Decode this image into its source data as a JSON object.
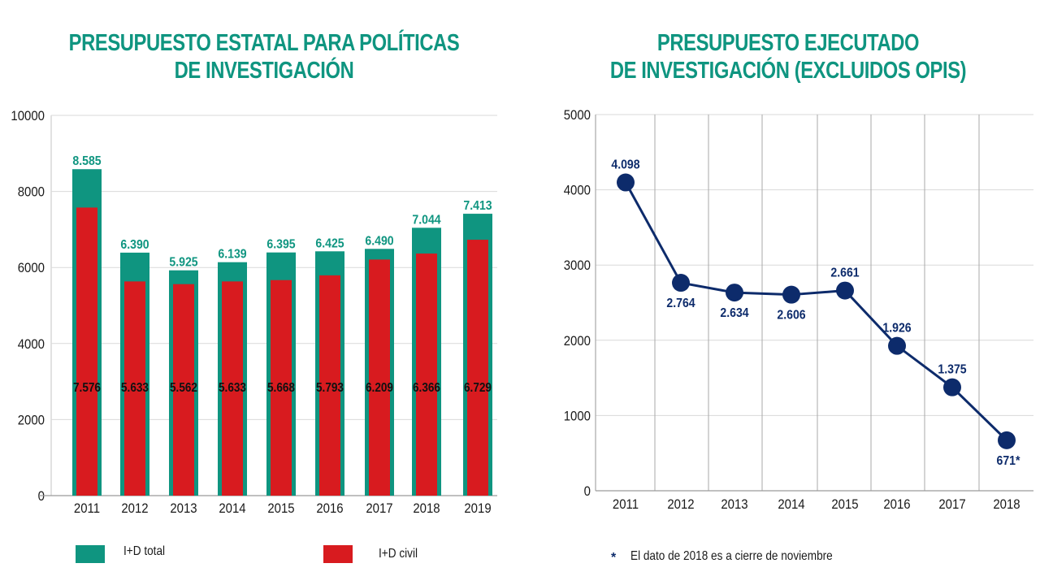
{
  "colors": {
    "total": "#0f9580",
    "civil": "#d81b1f",
    "line": "#0d2b6b",
    "grid": "#d9d9d9",
    "axis": "#9a9a9a"
  },
  "chart_data": [
    {
      "type": "bar",
      "title": "PRESUPUESTO ESTATAL PARA POLÍTICAS DE INVESTIGACIÓN",
      "title_lines": [
        "PRESUPUESTO ESTATAL PARA POLÍTICAS",
        "DE INVESTIGACIÓN"
      ],
      "xlabel": "",
      "ylabel": "",
      "ylim": [
        0,
        10000
      ],
      "yticks": [
        0,
        2000,
        4000,
        6000,
        8000,
        10000
      ],
      "ytick_labels": [
        "0",
        "2000",
        "4000",
        "6000",
        "8000",
        "10000"
      ],
      "grid": true,
      "legend_position": "bottom",
      "categories": [
        "2011",
        "2012",
        "2013",
        "2014",
        "2015",
        "2016",
        "2017",
        "2018",
        "2019"
      ],
      "series": [
        {
          "name": "I+D total",
          "values": [
            8585,
            6390,
            5925,
            6139,
            6395,
            6425,
            6490,
            7044,
            7413
          ],
          "labels": [
            "8.585",
            "6.390",
            "5.925",
            "6.139",
            "6.395",
            "6.425",
            "6.490",
            "7.044",
            "7.413"
          ]
        },
        {
          "name": "I+D civil",
          "values": [
            7576,
            5633,
            5562,
            5633,
            5668,
            5793,
            6209,
            6366,
            6729
          ],
          "labels": [
            "7.576",
            "5.633",
            "5.562",
            "5.633",
            "5.668",
            "5.793",
            "6.209",
            "6.366",
            "6.729"
          ]
        }
      ]
    },
    {
      "type": "line",
      "title": "PRESUPUESTO EJECUTADO DE INVESTIGACIÓN (EXCLUIDOS OPIS)",
      "title_lines": [
        "PRESUPUESTO EJECUTADO",
        "DE INVESTIGACIÓN (EXCLUIDOS OPIS)"
      ],
      "xlabel": "",
      "ylabel": "",
      "ylim": [
        0,
        5000
      ],
      "yticks": [
        0,
        1000,
        2000,
        3000,
        4000,
        5000
      ],
      "ytick_labels": [
        "0",
        "1000",
        "2000",
        "3000",
        "4000",
        "5000"
      ],
      "grid": true,
      "categories": [
        "2011",
        "2012",
        "2013",
        "2014",
        "2015",
        "2016",
        "2017",
        "2018"
      ],
      "series": [
        {
          "name": "Presupuesto ejecutado",
          "values": [
            4098,
            2764,
            2634,
            2606,
            2661,
            1926,
            1375,
            671
          ],
          "labels": [
            "4.098",
            "2.764",
            "2.634",
            "2.606",
            "2.661",
            "1.926",
            "1.375",
            "671*"
          ],
          "label_side": [
            "above",
            "below",
            "below",
            "below",
            "above",
            "above",
            "above",
            "below"
          ]
        }
      ],
      "footnote": "El dato de 2018 es a cierre de noviembre",
      "footnote_marker": "*"
    }
  ]
}
